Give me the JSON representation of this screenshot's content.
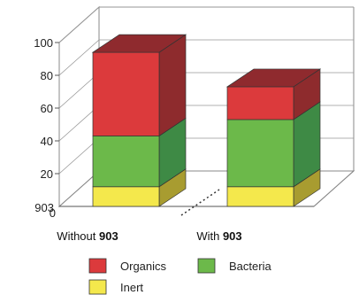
{
  "chart_data": {
    "type": "bar",
    "stacked": true,
    "three_d": true,
    "categories": [
      {
        "prefix": "Without",
        "suffix": "903"
      },
      {
        "prefix": "With",
        "suffix": "903"
      }
    ],
    "series": [
      {
        "name": "Inert",
        "values": [
          12,
          12
        ],
        "color": "#f4e84c",
        "side_color": "#a89c30",
        "top_color": "#f8ef7a"
      },
      {
        "name": "Bacteria",
        "values": [
          31,
          41
        ],
        "color": "#6cb94a",
        "side_color": "#3e8a45",
        "top_color": "#7fc55c"
      },
      {
        "name": "Organics",
        "values": [
          51,
          20
        ],
        "color": "#dc3a3c",
        "side_color": "#8e2b2d",
        "top_color": "#8f2a2e"
      }
    ],
    "y_ticks": [
      20,
      40,
      60,
      80,
      100
    ],
    "y_zero_label": "0",
    "y_zero_overlay": "903",
    "ylim": [
      0,
      100
    ],
    "grid": true,
    "legend_position": "bottom"
  }
}
